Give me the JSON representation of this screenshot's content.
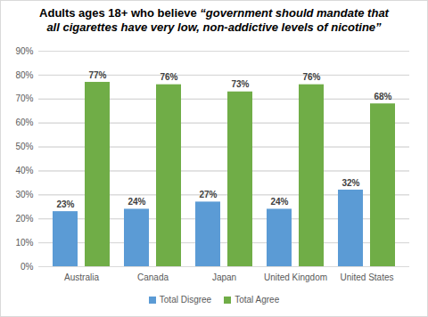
{
  "chart_data": {
    "type": "bar",
    "title": "Adults ages 18+ who believe “government should mandate that all cigarettes have very low, non-addictive levels of nicotine”",
    "categories": [
      "Australia",
      "Canada",
      "Japan",
      "United Kingdom",
      "United States"
    ],
    "series": [
      {
        "name": "Total Disgree",
        "color": "#5b9bd5",
        "values": [
          23,
          24,
          27,
          24,
          32
        ],
        "value_labels": [
          "23%",
          "24%",
          "27%",
          "24%",
          "32%"
        ]
      },
      {
        "name": "Total Agree",
        "color": "#70ad47",
        "values": [
          77,
          76,
          73,
          76,
          68
        ],
        "value_labels": [
          "77%",
          "76%",
          "73%",
          "76%",
          "68%"
        ]
      }
    ],
    "ylim": [
      0,
      90
    ],
    "yticks": [
      {
        "value": 0,
        "label": "0%"
      },
      {
        "value": 10,
        "label": "10%"
      },
      {
        "value": 20,
        "label": "20%"
      },
      {
        "value": 30,
        "label": "30%"
      },
      {
        "value": 40,
        "label": "40%"
      },
      {
        "value": 50,
        "label": "50%"
      },
      {
        "value": 60,
        "label": "60%"
      },
      {
        "value": 70,
        "label": "70%"
      },
      {
        "value": 80,
        "label": "80%"
      },
      {
        "value": 90,
        "label": "90%"
      }
    ],
    "grid": true,
    "data_labels": true,
    "legend": "bottom"
  }
}
